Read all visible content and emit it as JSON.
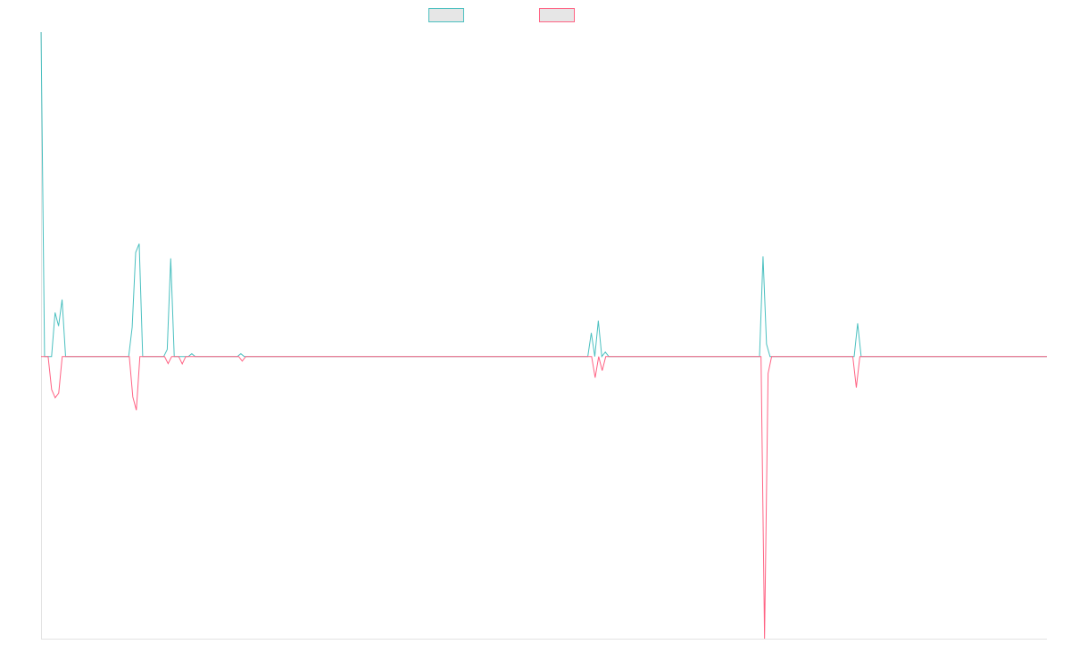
{
  "chart_data": {
    "type": "line",
    "title": "",
    "xlabel": "",
    "ylabel": "",
    "ylim": [
      -1,
      1.15
    ],
    "grid": false,
    "legend_position": "top-center",
    "series": [
      {
        "name": "",
        "color": "#4bc0c0",
        "fill": "#e6e6e6",
        "values": [
          1.15,
          0,
          0,
          0,
          0.156,
          0.108,
          0.202,
          0,
          0,
          0,
          0,
          0,
          0,
          0,
          0,
          0,
          0,
          0,
          0,
          0,
          0,
          0,
          0,
          0,
          0,
          0,
          0.104,
          0.369,
          0.4,
          0,
          0,
          0,
          0,
          0,
          0,
          0,
          0.025,
          0.348,
          0,
          0,
          0,
          0,
          0,
          0.01,
          0,
          0,
          0,
          0,
          0,
          0,
          0,
          0,
          0,
          0,
          0,
          0,
          0,
          0.01,
          0,
          0,
          0,
          0,
          0,
          0,
          0,
          0,
          0,
          0,
          0,
          0,
          0,
          0,
          0,
          0,
          0,
          0,
          0,
          0,
          0,
          0,
          0,
          0,
          0,
          0,
          0,
          0,
          0,
          0,
          0,
          0,
          0,
          0,
          0,
          0,
          0,
          0,
          0,
          0,
          0,
          0,
          0,
          0,
          0,
          0,
          0,
          0,
          0,
          0,
          0,
          0,
          0,
          0,
          0,
          0,
          0,
          0,
          0,
          0,
          0,
          0,
          0,
          0,
          0,
          0,
          0,
          0,
          0,
          0,
          0,
          0,
          0,
          0,
          0,
          0,
          0,
          0,
          0,
          0,
          0,
          0,
          0,
          0,
          0,
          0,
          0,
          0,
          0,
          0,
          0,
          0,
          0,
          0,
          0,
          0,
          0,
          0,
          0,
          0.084,
          0,
          0.127,
          0,
          0.016,
          0,
          0,
          0,
          0,
          0,
          0,
          0,
          0,
          0,
          0,
          0,
          0,
          0,
          0,
          0,
          0,
          0,
          0,
          0,
          0,
          0,
          0,
          0,
          0,
          0,
          0,
          0,
          0,
          0,
          0,
          0,
          0,
          0,
          0,
          0,
          0,
          0,
          0,
          0,
          0,
          0,
          0,
          0,
          0,
          0.355,
          0.044,
          0,
          0,
          0,
          0,
          0,
          0,
          0,
          0,
          0,
          0,
          0,
          0,
          0,
          0,
          0,
          0,
          0,
          0,
          0,
          0,
          0,
          0,
          0,
          0,
          0,
          0.118,
          0,
          0,
          0,
          0,
          0,
          0,
          0,
          0,
          0,
          0,
          0,
          0,
          0,
          0,
          0,
          0,
          0,
          0,
          0,
          0,
          0,
          0,
          0,
          0,
          0,
          0,
          0,
          0,
          0,
          0,
          0,
          0,
          0,
          0,
          0,
          0,
          0,
          0,
          0,
          0,
          0,
          0,
          0,
          0,
          0,
          0,
          0,
          0,
          0,
          0,
          0,
          0,
          0,
          0
        ]
      },
      {
        "name": "",
        "color": "#ff6384",
        "fill": "#e6e6e6",
        "values": [
          0,
          0,
          0,
          -0.117,
          -0.146,
          -0.13,
          0,
          0,
          0,
          0,
          0,
          0,
          0,
          0,
          0,
          0,
          0,
          0,
          0,
          0,
          0,
          0,
          0,
          0,
          0,
          0,
          -0.143,
          -0.19,
          0,
          0,
          0,
          0,
          0,
          0,
          0,
          0,
          -0.025,
          0,
          0,
          0,
          -0.026,
          0,
          0,
          0,
          0,
          0,
          0,
          0,
          0,
          0,
          0,
          0,
          0,
          0,
          0,
          0,
          0,
          -0.016,
          0,
          0,
          0,
          0,
          0,
          0,
          0,
          0,
          0,
          0,
          0,
          0,
          0,
          0,
          0,
          0,
          0,
          0,
          0,
          0,
          0,
          0,
          0,
          0,
          0,
          0,
          0,
          0,
          0,
          0,
          0,
          0,
          0,
          0,
          0,
          0,
          0,
          0,
          0,
          0,
          0,
          0,
          0,
          0,
          0,
          0,
          0,
          0,
          0,
          0,
          0,
          0,
          0,
          0,
          0,
          0,
          0,
          0,
          0,
          0,
          0,
          0,
          0,
          0,
          0,
          0,
          0,
          0,
          0,
          0,
          0,
          0,
          0,
          0,
          0,
          0,
          0,
          0,
          0,
          0,
          0,
          0,
          0,
          0,
          0,
          0,
          0,
          0,
          0,
          0,
          0,
          0,
          0,
          0,
          0,
          0,
          0,
          0,
          0,
          -0.075,
          0,
          -0.05,
          0,
          0,
          0,
          0,
          0,
          0,
          0,
          0,
          0,
          0,
          0,
          0,
          0,
          0,
          0,
          0,
          0,
          0,
          0,
          0,
          0,
          0,
          0,
          0,
          0,
          0,
          0,
          0,
          0,
          0,
          0,
          0,
          0,
          0,
          0,
          0,
          0,
          0,
          0,
          0,
          0,
          0,
          0,
          0,
          0,
          -1,
          -0.06,
          0,
          0,
          0,
          0,
          0,
          0,
          0,
          0,
          0,
          0,
          0,
          0,
          0,
          0,
          0,
          0,
          0,
          0,
          0,
          0,
          0,
          0,
          0,
          0,
          -0.11,
          0,
          0,
          0,
          0,
          0,
          0,
          0,
          0,
          0,
          0,
          0,
          0,
          0,
          0,
          0,
          0,
          0,
          0,
          0,
          0,
          0,
          0,
          0,
          0,
          0,
          0,
          0,
          0,
          0,
          0,
          0,
          0,
          0,
          0,
          0,
          0,
          0,
          0,
          0,
          0,
          0,
          0,
          0,
          0,
          0,
          0,
          0,
          0,
          0,
          0,
          0,
          0,
          0,
          0
        ]
      }
    ]
  }
}
